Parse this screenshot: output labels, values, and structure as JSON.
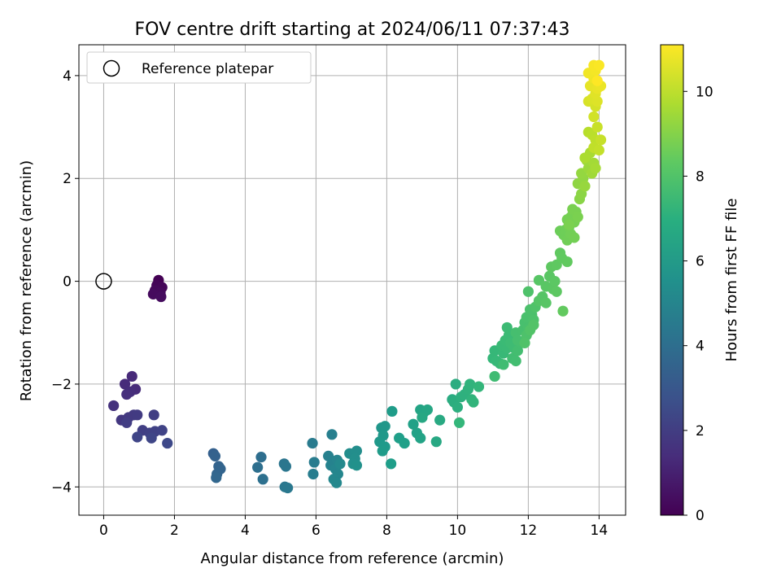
{
  "chart_data": {
    "type": "scatter",
    "title": "FOV centre drift starting at 2024/06/11 07:37:43",
    "xlabel": "Angular distance from reference (arcmin)",
    "ylabel": "Rotation from reference (arcmin)",
    "xlim": [
      -0.7,
      14.75
    ],
    "ylim": [
      -4.55,
      4.6
    ],
    "xticks": [
      0,
      2,
      4,
      6,
      8,
      10,
      12,
      14
    ],
    "yticks": [
      -4,
      -2,
      0,
      2,
      4
    ],
    "xtick_labels": [
      "0",
      "2",
      "4",
      "6",
      "8",
      "10",
      "12",
      "14"
    ],
    "ytick_labels": [
      "−4",
      "−2",
      "0",
      "2",
      "4"
    ],
    "grid": true,
    "legend": {
      "placement": "top-left",
      "entries": [
        "Reference platepar"
      ]
    },
    "reference_point": {
      "x": 0,
      "y": 0
    },
    "colorbar": {
      "label": "Hours from first FF file",
      "range": [
        0,
        11.1
      ],
      "ticks": [
        0,
        2,
        4,
        6,
        8,
        10
      ],
      "tick_labels": [
        "0",
        "2",
        "4",
        "6",
        "8",
        "10"
      ],
      "colormap": "viridis"
    },
    "points": [
      {
        "x": 1.55,
        "y": 0.02,
        "c": 0.0
      },
      {
        "x": 1.5,
        "y": -0.08,
        "c": 0.1
      },
      {
        "x": 1.65,
        "y": -0.12,
        "c": 0.15
      },
      {
        "x": 1.45,
        "y": -0.18,
        "c": 0.2
      },
      {
        "x": 1.6,
        "y": -0.22,
        "c": 0.25
      },
      {
        "x": 1.4,
        "y": -0.25,
        "c": 0.3
      },
      {
        "x": 1.62,
        "y": -0.3,
        "c": 0.35
      },
      {
        "x": 0.8,
        "y": -1.85,
        "c": 1.3
      },
      {
        "x": 0.6,
        "y": -2.0,
        "c": 1.35
      },
      {
        "x": 0.9,
        "y": -2.1,
        "c": 1.4
      },
      {
        "x": 0.75,
        "y": -2.15,
        "c": 1.45
      },
      {
        "x": 0.65,
        "y": -2.2,
        "c": 1.5
      },
      {
        "x": 0.28,
        "y": -2.42,
        "c": 1.6
      },
      {
        "x": 0.5,
        "y": -2.7,
        "c": 1.8
      },
      {
        "x": 0.7,
        "y": -2.65,
        "c": 1.85
      },
      {
        "x": 0.85,
        "y": -2.6,
        "c": 1.9
      },
      {
        "x": 0.95,
        "y": -2.6,
        "c": 1.95
      },
      {
        "x": 0.65,
        "y": -2.75,
        "c": 2.0
      },
      {
        "x": 1.42,
        "y": -2.6,
        "c": 2.05
      },
      {
        "x": 1.1,
        "y": -2.9,
        "c": 2.1
      },
      {
        "x": 1.3,
        "y": -2.95,
        "c": 2.15
      },
      {
        "x": 1.45,
        "y": -2.92,
        "c": 2.2
      },
      {
        "x": 1.65,
        "y": -2.9,
        "c": 2.25
      },
      {
        "x": 0.95,
        "y": -3.03,
        "c": 2.3
      },
      {
        "x": 1.35,
        "y": -3.05,
        "c": 2.35
      },
      {
        "x": 1.8,
        "y": -3.15,
        "c": 2.45
      },
      {
        "x": 3.1,
        "y": -3.35,
        "c": 3.4
      },
      {
        "x": 3.15,
        "y": -3.4,
        "c": 3.45
      },
      {
        "x": 3.25,
        "y": -3.6,
        "c": 3.5
      },
      {
        "x": 3.3,
        "y": -3.65,
        "c": 3.55
      },
      {
        "x": 3.2,
        "y": -3.75,
        "c": 3.6
      },
      {
        "x": 3.18,
        "y": -3.82,
        "c": 3.65
      },
      {
        "x": 4.45,
        "y": -3.42,
        "c": 4.0
      },
      {
        "x": 4.35,
        "y": -3.62,
        "c": 4.05
      },
      {
        "x": 4.5,
        "y": -3.85,
        "c": 4.1
      },
      {
        "x": 5.1,
        "y": -3.55,
        "c": 4.3
      },
      {
        "x": 5.15,
        "y": -3.6,
        "c": 4.35
      },
      {
        "x": 5.12,
        "y": -4.0,
        "c": 4.4
      },
      {
        "x": 5.2,
        "y": -4.02,
        "c": 4.45
      },
      {
        "x": 5.9,
        "y": -3.15,
        "c": 4.6
      },
      {
        "x": 5.95,
        "y": -3.52,
        "c": 4.65
      },
      {
        "x": 5.92,
        "y": -3.75,
        "c": 4.7
      },
      {
        "x": 6.45,
        "y": -2.98,
        "c": 4.8
      },
      {
        "x": 6.35,
        "y": -3.4,
        "c": 4.85
      },
      {
        "x": 6.5,
        "y": -3.5,
        "c": 4.9
      },
      {
        "x": 6.42,
        "y": -3.58,
        "c": 4.95
      },
      {
        "x": 6.6,
        "y": -3.48,
        "c": 5.0
      },
      {
        "x": 6.55,
        "y": -3.65,
        "c": 5.05
      },
      {
        "x": 6.62,
        "y": -3.75,
        "c": 5.1
      },
      {
        "x": 6.5,
        "y": -3.85,
        "c": 5.15
      },
      {
        "x": 6.58,
        "y": -3.92,
        "c": 5.2
      },
      {
        "x": 6.68,
        "y": -3.55,
        "c": 5.25
      },
      {
        "x": 6.95,
        "y": -3.35,
        "c": 5.4
      },
      {
        "x": 7.15,
        "y": -3.3,
        "c": 5.45
      },
      {
        "x": 7.1,
        "y": -3.45,
        "c": 5.5
      },
      {
        "x": 7.05,
        "y": -3.55,
        "c": 5.55
      },
      {
        "x": 7.15,
        "y": -3.58,
        "c": 5.6
      },
      {
        "x": 7.85,
        "y": -2.85,
        "c": 5.8
      },
      {
        "x": 7.95,
        "y": -2.82,
        "c": 5.85
      },
      {
        "x": 7.9,
        "y": -3.0,
        "c": 5.9
      },
      {
        "x": 7.8,
        "y": -3.12,
        "c": 5.95
      },
      {
        "x": 7.95,
        "y": -3.22,
        "c": 6.0
      },
      {
        "x": 7.88,
        "y": -3.3,
        "c": 6.05
      },
      {
        "x": 8.15,
        "y": -2.53,
        "c": 6.1
      },
      {
        "x": 8.12,
        "y": -3.55,
        "c": 6.15
      },
      {
        "x": 8.35,
        "y": -3.05,
        "c": 6.2
      },
      {
        "x": 8.5,
        "y": -3.15,
        "c": 6.25
      },
      {
        "x": 8.75,
        "y": -2.78,
        "c": 6.3
      },
      {
        "x": 8.85,
        "y": -2.95,
        "c": 6.35
      },
      {
        "x": 8.95,
        "y": -3.05,
        "c": 6.4
      },
      {
        "x": 8.95,
        "y": -2.5,
        "c": 6.45
      },
      {
        "x": 9.05,
        "y": -2.55,
        "c": 6.5
      },
      {
        "x": 9.15,
        "y": -2.5,
        "c": 6.55
      },
      {
        "x": 9.0,
        "y": -2.65,
        "c": 6.6
      },
      {
        "x": 9.4,
        "y": -3.12,
        "c": 6.65
      },
      {
        "x": 9.5,
        "y": -2.7,
        "c": 6.7
      },
      {
        "x": 9.85,
        "y": -2.3,
        "c": 6.8
      },
      {
        "x": 9.95,
        "y": -2.0,
        "c": 6.85
      },
      {
        "x": 9.9,
        "y": -2.35,
        "c": 6.9
      },
      {
        "x": 10.0,
        "y": -2.45,
        "c": 6.95
      },
      {
        "x": 10.1,
        "y": -2.25,
        "c": 7.0
      },
      {
        "x": 10.2,
        "y": -2.2,
        "c": 7.05
      },
      {
        "x": 10.3,
        "y": -2.1,
        "c": 7.1
      },
      {
        "x": 10.35,
        "y": -2.0,
        "c": 7.15
      },
      {
        "x": 10.4,
        "y": -2.3,
        "c": 7.2
      },
      {
        "x": 10.45,
        "y": -2.35,
        "c": 7.25
      },
      {
        "x": 10.6,
        "y": -2.05,
        "c": 7.3
      },
      {
        "x": 10.05,
        "y": -2.75,
        "c": 7.35
      },
      {
        "x": 11.0,
        "y": -1.5,
        "c": 7.4
      },
      {
        "x": 11.05,
        "y": -1.35,
        "c": 7.42
      },
      {
        "x": 11.1,
        "y": -1.55,
        "c": 7.44
      },
      {
        "x": 11.2,
        "y": -1.6,
        "c": 7.46
      },
      {
        "x": 11.3,
        "y": -1.4,
        "c": 7.48
      },
      {
        "x": 11.25,
        "y": -1.25,
        "c": 7.5
      },
      {
        "x": 11.4,
        "y": -1.3,
        "c": 7.52
      },
      {
        "x": 11.35,
        "y": -1.15,
        "c": 7.54
      },
      {
        "x": 11.45,
        "y": -1.05,
        "c": 7.56
      },
      {
        "x": 11.4,
        "y": -0.9,
        "c": 7.58
      },
      {
        "x": 11.5,
        "y": -1.2,
        "c": 7.6
      },
      {
        "x": 11.6,
        "y": -1.3,
        "c": 7.62
      },
      {
        "x": 11.05,
        "y": -1.85,
        "c": 7.64
      },
      {
        "x": 11.3,
        "y": -1.62,
        "c": 7.66
      },
      {
        "x": 11.55,
        "y": -1.5,
        "c": 7.68
      },
      {
        "x": 11.65,
        "y": -1.55,
        "c": 7.7
      },
      {
        "x": 11.7,
        "y": -1.35,
        "c": 7.72
      },
      {
        "x": 11.8,
        "y": -1.2,
        "c": 7.74
      },
      {
        "x": 11.65,
        "y": -1.0,
        "c": 7.76
      },
      {
        "x": 11.7,
        "y": -1.15,
        "c": 7.78
      },
      {
        "x": 11.85,
        "y": -0.95,
        "c": 7.8
      },
      {
        "x": 11.9,
        "y": -0.8,
        "c": 7.82
      },
      {
        "x": 12.0,
        "y": -0.9,
        "c": 7.84
      },
      {
        "x": 11.95,
        "y": -0.7,
        "c": 7.86
      },
      {
        "x": 12.1,
        "y": -0.65,
        "c": 7.88
      },
      {
        "x": 12.05,
        "y": -0.55,
        "c": 7.9
      },
      {
        "x": 12.15,
        "y": -0.75,
        "c": 7.92
      },
      {
        "x": 11.95,
        "y": -1.05,
        "c": 7.94
      },
      {
        "x": 12.0,
        "y": -0.2,
        "c": 7.96
      },
      {
        "x": 12.2,
        "y": -0.5,
        "c": 7.98
      },
      {
        "x": 11.9,
        "y": -1.2,
        "c": 8.0
      },
      {
        "x": 12.05,
        "y": -0.95,
        "c": 8.02
      },
      {
        "x": 12.15,
        "y": -0.85,
        "c": 8.04
      },
      {
        "x": 12.3,
        "y": -0.38,
        "c": 8.1
      },
      {
        "x": 12.4,
        "y": -0.3,
        "c": 8.12
      },
      {
        "x": 12.3,
        "y": 0.02,
        "c": 8.14
      },
      {
        "x": 12.5,
        "y": -0.42,
        "c": 8.16
      },
      {
        "x": 12.5,
        "y": -0.1,
        "c": 8.18
      },
      {
        "x": 12.6,
        "y": 0.1,
        "c": 8.2
      },
      {
        "x": 12.7,
        "y": -0.15,
        "c": 8.22
      },
      {
        "x": 12.75,
        "y": 0.0,
        "c": 8.24
      },
      {
        "x": 12.8,
        "y": -0.2,
        "c": 8.26
      },
      {
        "x": 12.65,
        "y": 0.28,
        "c": 8.28
      },
      {
        "x": 12.8,
        "y": 0.32,
        "c": 8.3
      },
      {
        "x": 12.9,
        "y": 0.55,
        "c": 8.32
      },
      {
        "x": 12.95,
        "y": 0.45,
        "c": 8.34
      },
      {
        "x": 13.1,
        "y": 0.38,
        "c": 8.36
      },
      {
        "x": 12.98,
        "y": -0.58,
        "c": 8.38
      },
      {
        "x": 12.9,
        "y": 0.98,
        "c": 8.6
      },
      {
        "x": 13.0,
        "y": 0.9,
        "c": 8.62
      },
      {
        "x": 13.05,
        "y": 1.0,
        "c": 8.64
      },
      {
        "x": 13.1,
        "y": 0.8,
        "c": 8.66
      },
      {
        "x": 13.15,
        "y": 1.05,
        "c": 8.68
      },
      {
        "x": 13.2,
        "y": 0.92,
        "c": 8.7
      },
      {
        "x": 13.3,
        "y": 0.85,
        "c": 8.72
      },
      {
        "x": 13.1,
        "y": 1.2,
        "c": 8.74
      },
      {
        "x": 13.2,
        "y": 1.25,
        "c": 8.76
      },
      {
        "x": 13.3,
        "y": 1.15,
        "c": 8.78
      },
      {
        "x": 13.35,
        "y": 1.35,
        "c": 8.8
      },
      {
        "x": 13.25,
        "y": 1.4,
        "c": 8.82
      },
      {
        "x": 13.4,
        "y": 1.25,
        "c": 8.84
      },
      {
        "x": 13.15,
        "y": 1.1,
        "c": 8.86
      },
      {
        "x": 13.45,
        "y": 1.6,
        "c": 9.1
      },
      {
        "x": 13.5,
        "y": 1.7,
        "c": 9.15
      },
      {
        "x": 13.4,
        "y": 1.9,
        "c": 9.2
      },
      {
        "x": 13.55,
        "y": 2.0,
        "c": 9.25
      },
      {
        "x": 13.5,
        "y": 2.1,
        "c": 9.3
      },
      {
        "x": 13.6,
        "y": 1.85,
        "c": 9.35
      },
      {
        "x": 13.7,
        "y": 2.2,
        "c": 9.4
      },
      {
        "x": 13.65,
        "y": 2.35,
        "c": 9.45
      },
      {
        "x": 13.8,
        "y": 2.1,
        "c": 9.5
      },
      {
        "x": 13.85,
        "y": 2.3,
        "c": 9.55
      },
      {
        "x": 13.9,
        "y": 2.2,
        "c": 9.6
      },
      {
        "x": 13.75,
        "y": 2.5,
        "c": 9.65
      },
      {
        "x": 13.6,
        "y": 2.4,
        "c": 9.7
      },
      {
        "x": 13.7,
        "y": 2.9,
        "c": 9.9
      },
      {
        "x": 13.8,
        "y": 2.85,
        "c": 9.95
      },
      {
        "x": 13.9,
        "y": 2.75,
        "c": 10.0
      },
      {
        "x": 13.85,
        "y": 2.6,
        "c": 10.05
      },
      {
        "x": 14.0,
        "y": 2.55,
        "c": 10.1
      },
      {
        "x": 14.05,
        "y": 2.75,
        "c": 10.15
      },
      {
        "x": 13.95,
        "y": 3.0,
        "c": 10.2
      },
      {
        "x": 13.85,
        "y": 3.2,
        "c": 10.35
      },
      {
        "x": 13.9,
        "y": 3.4,
        "c": 10.4
      },
      {
        "x": 13.7,
        "y": 3.5,
        "c": 10.45
      },
      {
        "x": 13.8,
        "y": 3.55,
        "c": 10.5
      },
      {
        "x": 13.95,
        "y": 3.5,
        "c": 10.55
      },
      {
        "x": 13.9,
        "y": 3.65,
        "c": 10.6
      },
      {
        "x": 13.75,
        "y": 3.8,
        "c": 10.7
      },
      {
        "x": 13.95,
        "y": 3.75,
        "c": 10.75
      },
      {
        "x": 14.05,
        "y": 3.8,
        "c": 10.8
      },
      {
        "x": 13.85,
        "y": 3.95,
        "c": 10.85
      },
      {
        "x": 13.7,
        "y": 4.05,
        "c": 10.9
      },
      {
        "x": 13.9,
        "y": 4.1,
        "c": 10.95
      },
      {
        "x": 13.85,
        "y": 4.2,
        "c": 11.0
      },
      {
        "x": 14.0,
        "y": 4.2,
        "c": 11.05
      },
      {
        "x": 13.95,
        "y": 3.9,
        "c": 11.1
      }
    ]
  }
}
